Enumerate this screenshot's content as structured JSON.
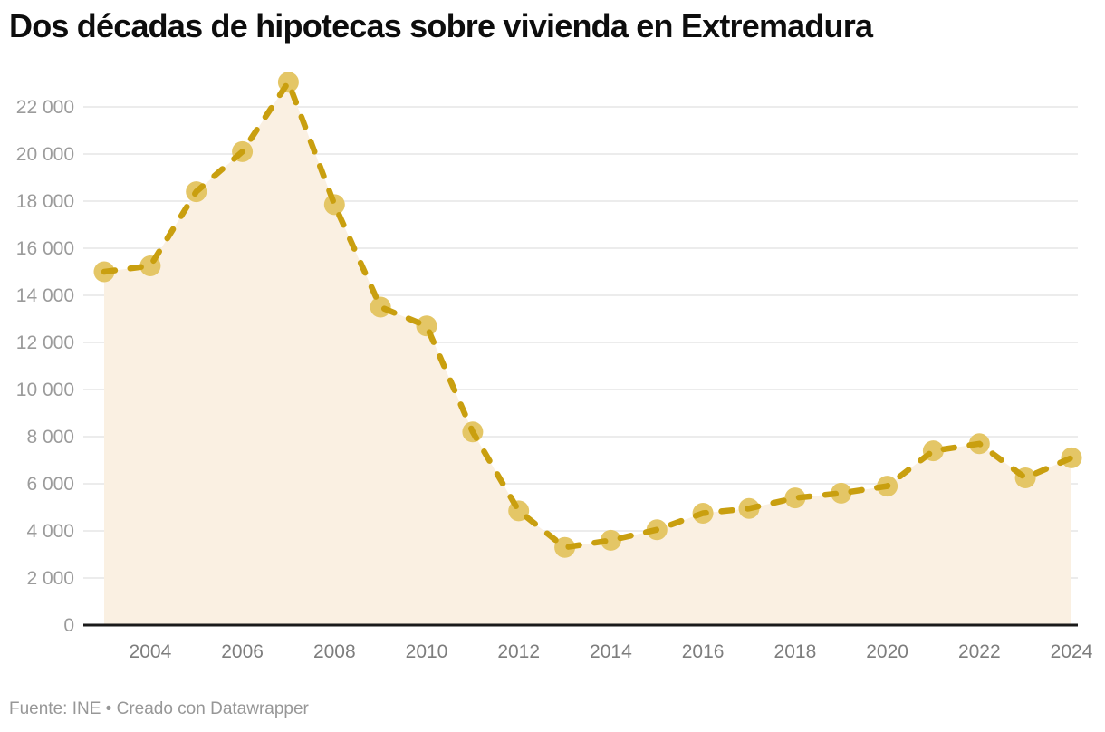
{
  "title": "Dos décadas de hipotecas sobre vivienda en Extremadura",
  "footer": {
    "text": "Fuente: INE • Creado con Datawrapper"
  },
  "chart_data": {
    "type": "area",
    "title": "Dos décadas de hipotecas sobre vivienda en Extremadura",
    "xlabel": "",
    "ylabel": "",
    "x": [
      2003,
      2004,
      2005,
      2006,
      2007,
      2008,
      2009,
      2010,
      2011,
      2012,
      2013,
      2014,
      2015,
      2016,
      2017,
      2018,
      2019,
      2020,
      2021,
      2022,
      2023,
      2024
    ],
    "values": [
      15000,
      15250,
      18400,
      20100,
      23050,
      17850,
      13500,
      12700,
      8200,
      4850,
      3300,
      3600,
      4050,
      4750,
      4950,
      5400,
      5600,
      5900,
      7400,
      7700,
      6250,
      7100
    ],
    "ylim": [
      0,
      23200
    ],
    "yticks": [
      0,
      2000,
      4000,
      6000,
      8000,
      10000,
      12000,
      14000,
      16000,
      18000,
      20000,
      22000
    ],
    "ytick_labels": [
      "0",
      "2 000",
      "4 000",
      "6 000",
      "8 000",
      "10 000",
      "12 000",
      "14 000",
      "16 000",
      "18 000",
      "20 000",
      "22 000"
    ],
    "xticks": [
      2004,
      2006,
      2008,
      2010,
      2012,
      2014,
      2016,
      2018,
      2020,
      2022,
      2024
    ],
    "grid": "on",
    "legend": "none",
    "line_style": "dashed",
    "colors": {
      "line": "#C99F0F",
      "marker": "#E4C666",
      "area": "#FAF0E2",
      "grid": "#E6E6E6",
      "axis_line": "#1A1A1A",
      "ytick_label": "#9B9B9B",
      "xtick_label": "#7D7D7D"
    }
  }
}
